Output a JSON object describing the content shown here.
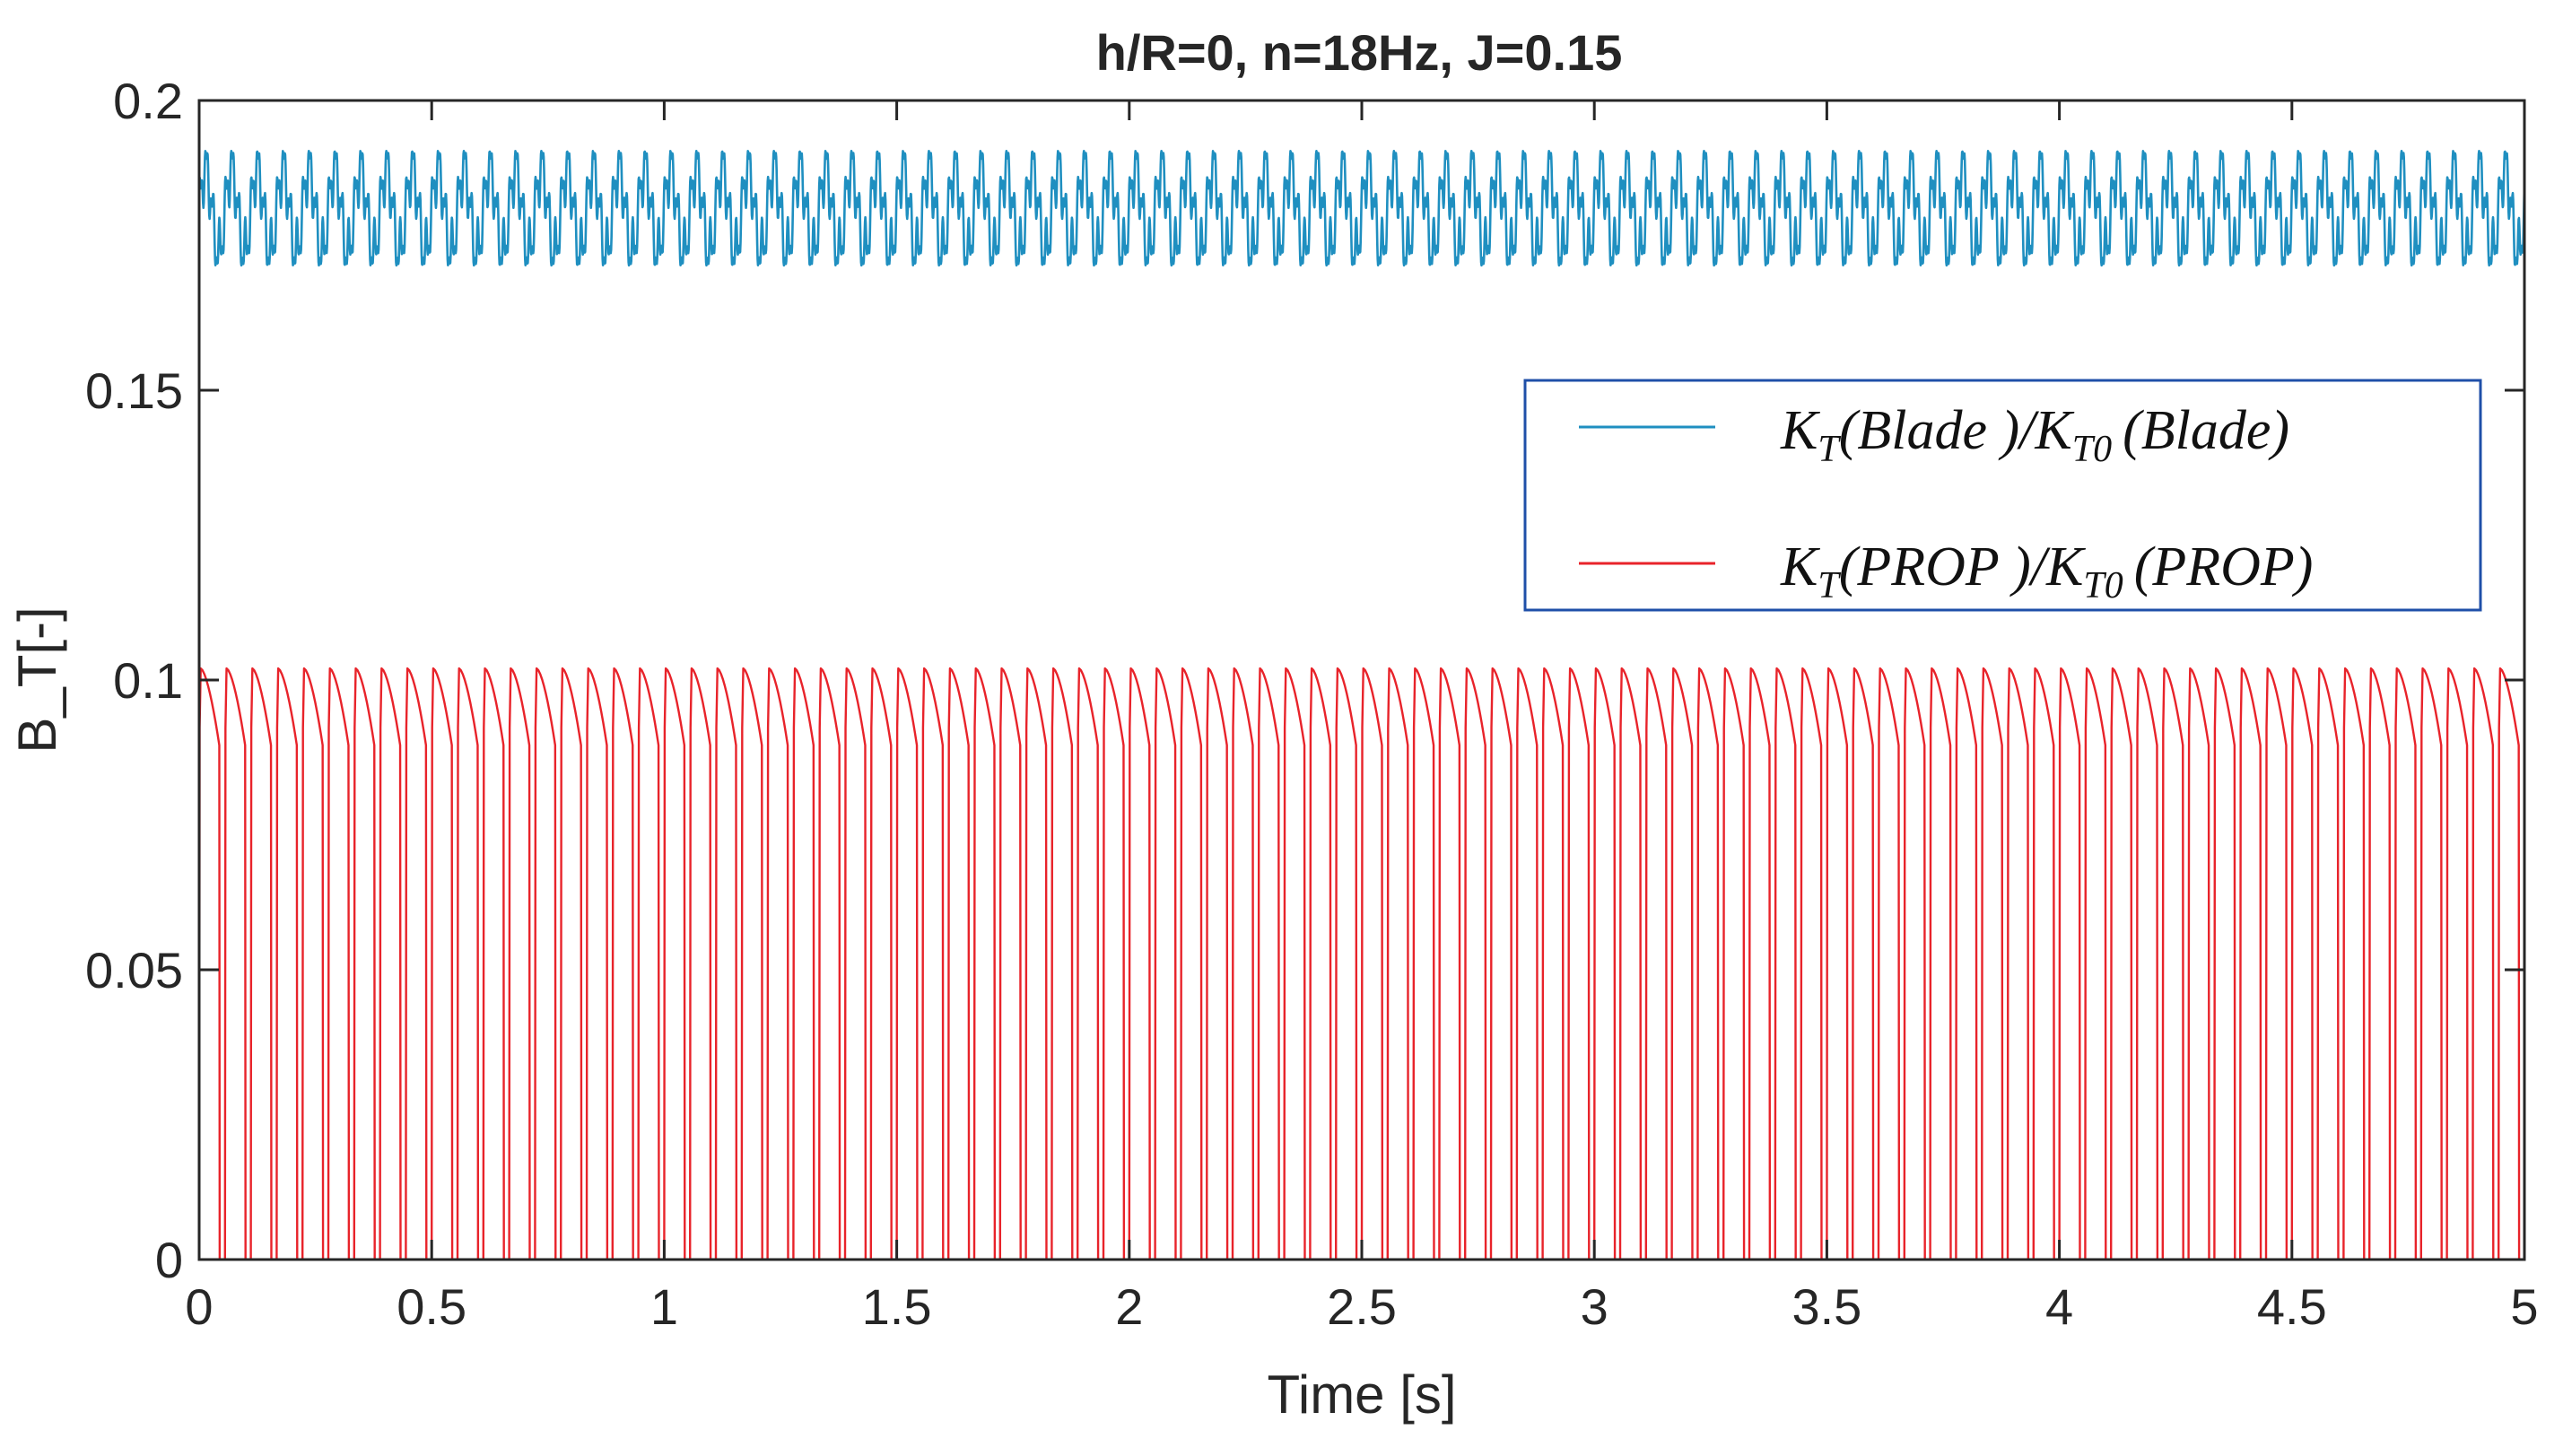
{
  "chart_data": {
    "type": "line",
    "title": "h/R=0, n=18Hz, J=0.15",
    "xlabel": "Time [s]",
    "ylabel": "B_T[-]",
    "xlim": [
      0,
      5
    ],
    "ylim": [
      0,
      0.2
    ],
    "xticks": [
      0,
      0.5,
      1,
      1.5,
      2,
      2.5,
      3,
      3.5,
      4,
      4.5,
      5
    ],
    "xtick_labels": [
      "0",
      "0.5",
      "1",
      "1.5",
      "2",
      "2.5",
      "3",
      "3.5",
      "4",
      "4.5",
      "5"
    ],
    "yticks": [
      0,
      0.05,
      0.1,
      0.15,
      0.2
    ],
    "ytick_labels": [
      "0",
      "0.05",
      "0.1",
      "0.15",
      "0.2"
    ],
    "grid": false,
    "legend_position": "upper-right",
    "series": [
      {
        "name": "K_T(Blade)/K_T0(Blade)",
        "color": "#1f8fc0",
        "pattern": "oscillation",
        "periods_per_second": 18,
        "mean": 0.181,
        "min": 0.163,
        "max": 0.194
      },
      {
        "name": "K_T(PROP)/K_T0(PROP)",
        "color": "#e8232a",
        "pattern": "pulse",
        "periods_per_second": 18,
        "min": 0,
        "max": 0.102,
        "high_fraction": 0.78
      }
    ],
    "legend": [
      {
        "num_main": "K",
        "num_sub": "T",
        "num_arg": "(Blade )",
        "slash": "/",
        "den_main": "K",
        "den_sub": "T0",
        "den_arg": "(Blade)"
      },
      {
        "num_main": "K",
        "num_sub": "T",
        "num_arg": "(PROP )",
        "slash": "/",
        "den_main": "K",
        "den_sub": "T0",
        "den_arg": "(PROP)"
      }
    ]
  }
}
